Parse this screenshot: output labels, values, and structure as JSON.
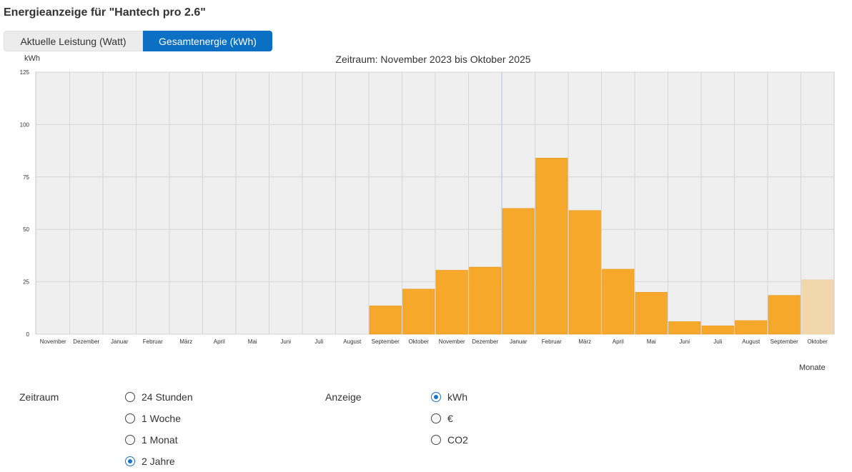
{
  "title": "Energieanzeige für \"Hantech pro 2.6\"",
  "tabs": [
    {
      "label": "Aktuelle Leistung (Watt)",
      "active": false
    },
    {
      "label": "Gesamtenergie (kWh)",
      "active": true
    }
  ],
  "colors": {
    "accent": "#0b6fc4",
    "bar": "#f5a82a",
    "bar_current": "#f2d7ad",
    "plot_bg": "#efefef"
  },
  "chart_data": {
    "type": "bar",
    "title": "Zeitraum: November 2023 bis Oktober 2025",
    "ylabel": "kWh",
    "xlabel": "Monate",
    "ylim": [
      0,
      125
    ],
    "yticks": [
      0,
      25,
      50,
      75,
      100,
      125
    ],
    "grid": true,
    "categories": [
      "November",
      "Dezember",
      "Januar",
      "Februar",
      "März",
      "April",
      "Mai",
      "Juni",
      "Juli",
      "August",
      "September",
      "Oktober",
      "November",
      "Dezember",
      "Januar",
      "Februar",
      "März",
      "April",
      "Mai",
      "Juni",
      "Juli",
      "August",
      "September",
      "Oktober"
    ],
    "series": [
      {
        "values": [
          0,
          0,
          0,
          0,
          0,
          0,
          0,
          0,
          0,
          0,
          13.5,
          21.5,
          30.5,
          32,
          60,
          84,
          59,
          31,
          20,
          6,
          4,
          6.5,
          18.5,
          26
        ]
      }
    ],
    "current_period_index": 23
  },
  "controls": {
    "zeitraum": {
      "label": "Zeitraum",
      "options": [
        {
          "label": "24 Stunden",
          "checked": false
        },
        {
          "label": "1 Woche",
          "checked": false
        },
        {
          "label": "1 Monat",
          "checked": false
        },
        {
          "label": "2 Jahre",
          "checked": true
        }
      ]
    },
    "anzeige": {
      "label": "Anzeige",
      "options": [
        {
          "label": "kWh",
          "checked": true
        },
        {
          "label": "€",
          "checked": false
        },
        {
          "label": "CO2",
          "checked": false
        }
      ]
    }
  }
}
